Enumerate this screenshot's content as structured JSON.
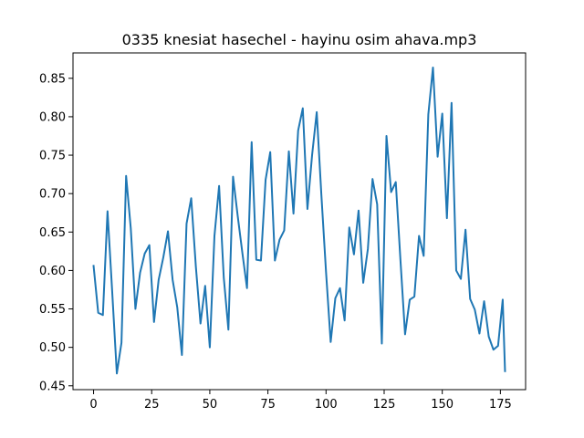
{
  "chart_data": {
    "type": "line",
    "title": "0335 knesiat hasechel - hayinu osim ahava.mp3",
    "xlabel": "",
    "ylabel": "",
    "xlim": [
      -8.85,
      185.85
    ],
    "ylim": [
      0.445,
      0.883
    ],
    "x_ticks": [
      0,
      25,
      50,
      75,
      100,
      125,
      150,
      175
    ],
    "y_ticks": [
      0.45,
      0.5,
      0.55,
      0.6,
      0.65,
      0.7,
      0.75,
      0.8,
      0.85
    ],
    "y_tick_labels": [
      "0.45",
      "0.50",
      "0.55",
      "0.60",
      "0.65",
      "0.70",
      "0.75",
      "0.80",
      "0.85"
    ],
    "grid": false,
    "line_color": "#1f77b4",
    "series": [
      {
        "x": [
          0,
          2,
          4,
          6,
          8,
          10,
          12,
          14,
          16,
          18,
          20,
          22,
          24,
          26,
          28,
          30,
          32,
          34,
          36,
          38,
          40,
          42,
          44,
          46,
          48,
          50,
          52,
          54,
          56,
          58,
          60,
          62,
          64,
          66,
          68,
          70,
          72,
          74,
          76,
          78,
          80,
          82,
          84,
          86,
          88,
          90,
          92,
          94,
          96,
          98,
          100,
          102,
          104,
          106,
          108,
          110,
          112,
          114,
          116,
          118,
          120,
          122,
          124,
          126,
          128,
          130,
          132,
          134,
          136,
          138,
          140,
          142,
          144,
          146,
          148,
          150,
          152,
          154,
          156,
          158,
          160,
          162,
          164,
          166,
          168,
          170,
          172,
          174,
          176,
          177
        ],
        "values": [
          0.606,
          0.545,
          0.542,
          0.677,
          0.573,
          0.466,
          0.506,
          0.723,
          0.655,
          0.55,
          0.597,
          0.622,
          0.633,
          0.533,
          0.588,
          0.617,
          0.651,
          0.588,
          0.552,
          0.49,
          0.661,
          0.694,
          0.605,
          0.531,
          0.58,
          0.5,
          0.645,
          0.71,
          0.591,
          0.523,
          0.722,
          0.671,
          0.623,
          0.577,
          0.767,
          0.614,
          0.613,
          0.718,
          0.754,
          0.613,
          0.64,
          0.652,
          0.755,
          0.674,
          0.782,
          0.811,
          0.68,
          0.75,
          0.806,
          0.698,
          0.598,
          0.507,
          0.564,
          0.577,
          0.535,
          0.656,
          0.621,
          0.678,
          0.584,
          0.628,
          0.719,
          0.686,
          0.505,
          0.775,
          0.702,
          0.715,
          0.614,
          0.517,
          0.562,
          0.566,
          0.645,
          0.619,
          0.803,
          0.864,
          0.748,
          0.804,
          0.668,
          0.818,
          0.6,
          0.589,
          0.653,
          0.563,
          0.549,
          0.518,
          0.56,
          0.514,
          0.497,
          0.502,
          0.562,
          0.469
        ]
      }
    ]
  }
}
